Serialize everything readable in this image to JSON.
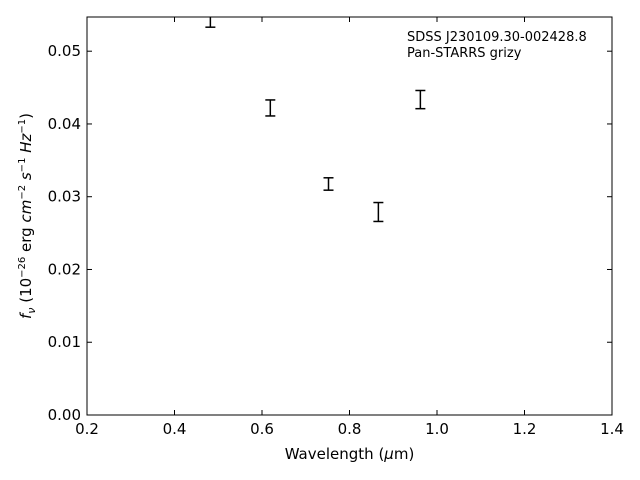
{
  "chart_data": {
    "type": "scatter",
    "title": "",
    "xlabel": "Wavelength (μm)",
    "ylabel": "f_ν (10^−26 erg cm^−2 s^−1 Hz^−1)",
    "xlim": [
      0.2,
      1.4
    ],
    "ylim": [
      0.0,
      0.0547
    ],
    "xticks": [
      "0.2",
      "0.4",
      "0.6",
      "0.8",
      "1.0",
      "1.2",
      "1.4"
    ],
    "yticks": [
      "0.00",
      "0.01",
      "0.02",
      "0.03",
      "0.04",
      "0.05"
    ],
    "grid": false,
    "annotations": [
      "SDSS J230109.30-002428.8",
      "Pan-STARRS grizy"
    ],
    "series": [
      {
        "marker": "errorbar-only",
        "points": [
          {
            "band": "g",
            "x": 0.482,
            "ylow": 0.0533,
            "yhigh": 0.0551
          },
          {
            "band": "r",
            "x": 0.619,
            "ylow": 0.0411,
            "yhigh": 0.0433
          },
          {
            "band": "i",
            "x": 0.752,
            "ylow": 0.0309,
            "yhigh": 0.0326
          },
          {
            "band": "z",
            "x": 0.866,
            "ylow": 0.0266,
            "yhigh": 0.0292
          },
          {
            "band": "y",
            "x": 0.962,
            "ylow": 0.0421,
            "yhigh": 0.0446
          }
        ]
      }
    ]
  }
}
